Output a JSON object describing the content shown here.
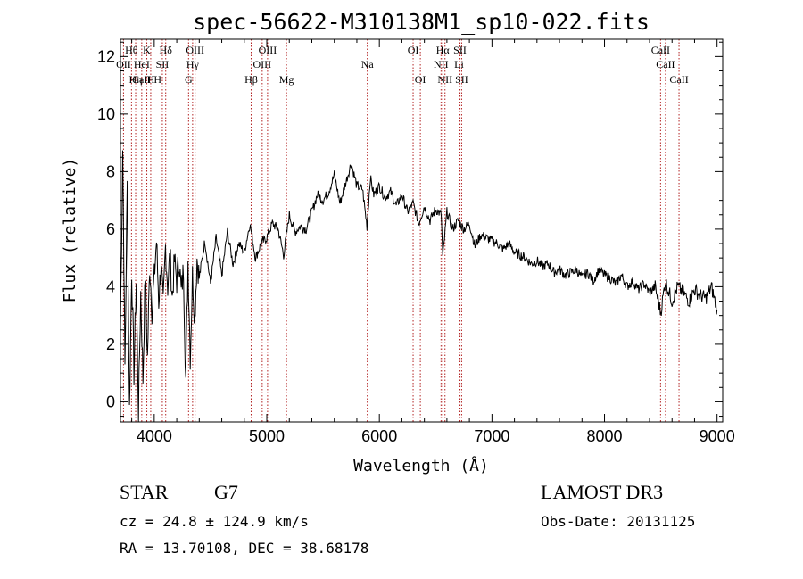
{
  "chart_data": {
    "type": "line",
    "title": "spec-56622-M310138M1_sp10-022.fits",
    "xlabel": "Wavelength (Å)",
    "ylabel": "Flux (relative)",
    "xlim": [
      3700,
      9050
    ],
    "ylim": [
      -0.7,
      12.6
    ],
    "x_ticks": [
      4000,
      5000,
      6000,
      7000,
      8000,
      9000
    ],
    "x_tick_labels": [
      "4000",
      "5000",
      "6000",
      "7000",
      "8000",
      "9000"
    ],
    "y_ticks": [
      0,
      2,
      4,
      6,
      8,
      10,
      12
    ],
    "y_tick_labels": [
      "0",
      "2",
      "4",
      "6",
      "8",
      "10",
      "12"
    ],
    "series": [
      {
        "color": "#000000",
        "x": [
          3700,
          3720,
          3740,
          3760,
          3780,
          3800,
          3820,
          3840,
          3860,
          3880,
          3900,
          3920,
          3940,
          3960,
          3980,
          4000,
          4020,
          4040,
          4060,
          4080,
          4100,
          4120,
          4140,
          4160,
          4180,
          4200,
          4220,
          4240,
          4260,
          4280,
          4300,
          4320,
          4340,
          4360,
          4380,
          4400,
          4450,
          4500,
          4550,
          4600,
          4650,
          4700,
          4750,
          4800,
          4850,
          4900,
          4950,
          5000,
          5050,
          5100,
          5150,
          5200,
          5250,
          5300,
          5350,
          5400,
          5450,
          5500,
          5550,
          5600,
          5650,
          5700,
          5750,
          5800,
          5850,
          5890,
          5920,
          5950,
          6000,
          6050,
          6100,
          6150,
          6200,
          6250,
          6300,
          6350,
          6400,
          6450,
          6500,
          6550,
          6563,
          6600,
          6650,
          6700,
          6750,
          6800,
          6850,
          6900,
          6950,
          7000,
          7050,
          7100,
          7150,
          7200,
          7250,
          7300,
          7350,
          7400,
          7450,
          7500,
          7550,
          7600,
          7650,
          7700,
          7750,
          7800,
          7850,
          7900,
          7950,
          8000,
          8050,
          8100,
          8150,
          8200,
          8250,
          8300,
          8350,
          8400,
          8450,
          8500,
          8540,
          8600,
          8650,
          8700,
          8750,
          8800,
          8850,
          8900,
          8950,
          9000
        ],
        "y": [
          2.5,
          8.8,
          1.2,
          7.5,
          -0.3,
          4.6,
          1.0,
          4.2,
          -0.4,
          3.8,
          0.8,
          4.5,
          1.5,
          4.8,
          3.2,
          4.3,
          5.6,
          3.5,
          4.8,
          3.3,
          5.4,
          4.0,
          5.2,
          3.6,
          4.9,
          4.2,
          5.0,
          3.8,
          4.6,
          0.8,
          4.9,
          1.6,
          4.4,
          2.9,
          5.0,
          4.3,
          5.6,
          4.1,
          5.7,
          4.4,
          5.9,
          4.8,
          5.5,
          5.2,
          6.2,
          5.0,
          5.5,
          5.7,
          6.2,
          6.0,
          5.1,
          6.5,
          5.9,
          6.1,
          6.0,
          6.6,
          7.2,
          7.0,
          7.3,
          7.9,
          6.9,
          7.6,
          8.3,
          7.5,
          7.4,
          6.1,
          7.8,
          7.2,
          7.5,
          7.1,
          7.3,
          6.8,
          7.2,
          6.6,
          6.9,
          6.2,
          6.8,
          6.3,
          6.7,
          6.5,
          5.0,
          6.6,
          6.0,
          6.3,
          6.0,
          6.2,
          5.4,
          5.8,
          5.7,
          5.6,
          5.5,
          5.3,
          5.5,
          5.2,
          5.1,
          5.0,
          4.8,
          4.9,
          4.7,
          4.8,
          4.5,
          4.6,
          4.4,
          4.5,
          4.6,
          4.3,
          4.5,
          4.2,
          4.6,
          4.4,
          4.3,
          4.1,
          4.4,
          4.0,
          4.2,
          3.9,
          4.1,
          3.8,
          4.0,
          3.1,
          4.2,
          3.5,
          4.0,
          3.8,
          3.5,
          3.9,
          3.7,
          3.6,
          4.0,
          3.2
        ]
      }
    ],
    "line_markers": [
      {
        "label": "CaII H",
        "x": 3934,
        "row": 0
      },
      {
        "label": "Hη",
        "x": 3835,
        "row": 0
      },
      {
        "label": "OII",
        "x": 3727,
        "row": 1
      },
      {
        "label": "Hθ",
        "x": 3798,
        "row": 2
      },
      {
        "label": "K",
        "x": 3934,
        "row": 2
      },
      {
        "label": "HeI",
        "x": 3889,
        "row": 1
      },
      {
        "label": "H",
        "x": 3969,
        "row": 0
      },
      {
        "label": "SII",
        "x": 4072,
        "row": 1
      },
      {
        "label": "Hδ",
        "x": 4102,
        "row": 2
      },
      {
        "label": "G",
        "x": 4305,
        "row": 0
      },
      {
        "label": "Hγ",
        "x": 4341,
        "row": 1
      },
      {
        "label": "OIII",
        "x": 4363,
        "row": 2
      },
      {
        "label": "Hβ",
        "x": 4861,
        "row": 0
      },
      {
        "label": "OIII",
        "x": 4959,
        "row": 1
      },
      {
        "label": "OIII",
        "x": 5007,
        "row": 2
      },
      {
        "label": "Mg",
        "x": 5175,
        "row": 0
      },
      {
        "label": "Na",
        "x": 5893,
        "row": 1
      },
      {
        "label": "OI",
        "x": 6300,
        "row": 2
      },
      {
        "label": "OI",
        "x": 6364,
        "row": 0
      },
      {
        "label": "NII",
        "x": 6548,
        "row": 1
      },
      {
        "label": "NII",
        "x": 6583,
        "row": 0
      },
      {
        "label": "Hα",
        "x": 6563,
        "row": 2
      },
      {
        "label": "SII",
        "x": 6716,
        "row": 2
      },
      {
        "label": "Li",
        "x": 6708,
        "row": 1
      },
      {
        "label": "SII",
        "x": 6731,
        "row": 0
      },
      {
        "label": "CaII",
        "x": 8498,
        "row": 2
      },
      {
        "label": "CaII",
        "x": 8542,
        "row": 1
      },
      {
        "label": "CaII",
        "x": 8662,
        "row": 0
      }
    ]
  },
  "info": {
    "class_label": "STAR",
    "subclass_label": "G7",
    "survey": "LAMOST DR3",
    "cz": "cz = 24.8 ± 124.9 km/s",
    "obs_date": "Obs-Date: 20131125",
    "coords": "RA =  13.70108, DEC =  38.68178"
  },
  "colors": {
    "spectrum": "#000000",
    "line_marker": "#b22222",
    "axes": "#000000"
  }
}
